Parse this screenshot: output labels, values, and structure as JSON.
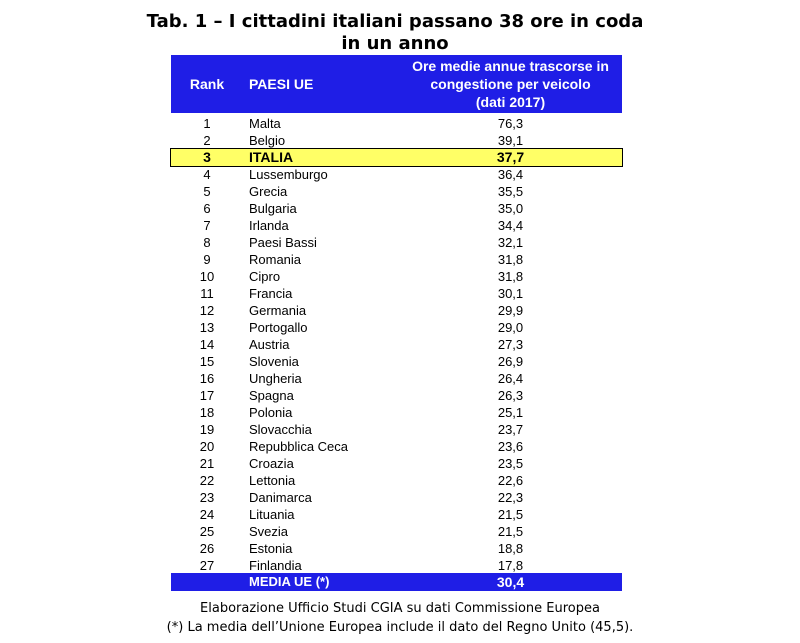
{
  "title": {
    "line1": "Tab. 1 – I cittadini italiani passano 38 ore in coda",
    "line2": "in un anno"
  },
  "header": {
    "rank": "Rank",
    "country": "PAESI UE",
    "value_line1": "Ore medie annue trascorse in",
    "value_line2": "congestione per veicolo",
    "value_line3": "(dati 2017)"
  },
  "rows": [
    {
      "rank": "1",
      "country": "Malta",
      "value": "76,3"
    },
    {
      "rank": "2",
      "country": "Belgio",
      "value": "39,1"
    },
    {
      "rank": "3",
      "country": "ITALIA",
      "value": "37,7"
    },
    {
      "rank": "4",
      "country": "Lussemburgo",
      "value": "36,4"
    },
    {
      "rank": "5",
      "country": "Grecia",
      "value": "35,5"
    },
    {
      "rank": "6",
      "country": "Bulgaria",
      "value": "35,0"
    },
    {
      "rank": "7",
      "country": "Irlanda",
      "value": "34,4"
    },
    {
      "rank": "8",
      "country": "Paesi Bassi",
      "value": "32,1"
    },
    {
      "rank": "9",
      "country": "Romania",
      "value": "31,8"
    },
    {
      "rank": "10",
      "country": "Cipro",
      "value": "31,8"
    },
    {
      "rank": "11",
      "country": "Francia",
      "value": "30,1"
    },
    {
      "rank": "12",
      "country": "Germania",
      "value": "29,9"
    },
    {
      "rank": "13",
      "country": "Portogallo",
      "value": "29,0"
    },
    {
      "rank": "14",
      "country": "Austria",
      "value": "27,3"
    },
    {
      "rank": "15",
      "country": "Slovenia",
      "value": "26,9"
    },
    {
      "rank": "16",
      "country": "Ungheria",
      "value": "26,4"
    },
    {
      "rank": "17",
      "country": "Spagna",
      "value": "26,3"
    },
    {
      "rank": "18",
      "country": "Polonia",
      "value": "25,1"
    },
    {
      "rank": "19",
      "country": "Slovacchia",
      "value": "23,7"
    },
    {
      "rank": "20",
      "country": "Repubblica Ceca",
      "value": "23,6"
    },
    {
      "rank": "21",
      "country": "Croazia",
      "value": "23,5"
    },
    {
      "rank": "22",
      "country": "Lettonia",
      "value": "22,6"
    },
    {
      "rank": "23",
      "country": "Danimarca",
      "value": "22,3"
    },
    {
      "rank": "24",
      "country": "Lituania",
      "value": "21,5"
    },
    {
      "rank": "25",
      "country": "Svezia",
      "value": "21,5"
    },
    {
      "rank": "26",
      "country": "Estonia",
      "value": "18,8"
    },
    {
      "rank": "27",
      "country": "Finlandia",
      "value": "17,8"
    }
  ],
  "highlight_rank": "3",
  "average": {
    "label": "MEDIA UE (*)",
    "value": "30,4"
  },
  "notes": {
    "source": "Elaborazione Ufficio Studi CGIA su dati Commissione Europea",
    "footnote": "(*) La media dell’Unione Europea include il dato del Regno Unito (45,5)."
  },
  "colors": {
    "header_bg": "#1f1ee6",
    "header_text": "#ffffff",
    "highlight_bg": "#ffff66"
  }
}
